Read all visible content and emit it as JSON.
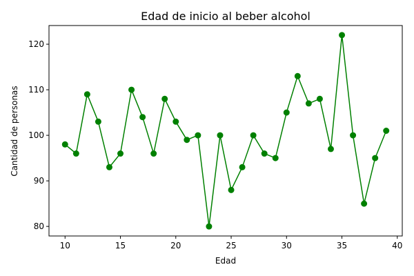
{
  "chart_data": {
    "type": "line",
    "title": "Edad de inicio al beber alcohol",
    "xlabel": "Edad",
    "ylabel": "Cantidad de personas",
    "xlim": [
      8.55,
      40.45
    ],
    "ylim": [
      77.9,
      124.1
    ],
    "xticks": [
      10,
      15,
      20,
      25,
      30,
      35,
      40
    ],
    "yticks": [
      80,
      90,
      100,
      110,
      120
    ],
    "grid": false,
    "marker": "circle",
    "color": "#008000",
    "series": [
      {
        "x": [
          10,
          11,
          12,
          13,
          14,
          15,
          16,
          17,
          18,
          19,
          20,
          21,
          22,
          23,
          24,
          25,
          26,
          27,
          28,
          29,
          30,
          31,
          32,
          33,
          34,
          35,
          36,
          37,
          38,
          39
        ],
        "values": [
          98,
          96,
          109,
          103,
          93,
          96,
          110,
          104,
          96,
          108,
          103,
          99,
          100,
          80,
          100,
          88,
          93,
          100,
          96,
          95,
          105,
          113,
          107,
          108,
          97,
          122,
          100,
          85,
          95,
          101
        ]
      }
    ]
  }
}
